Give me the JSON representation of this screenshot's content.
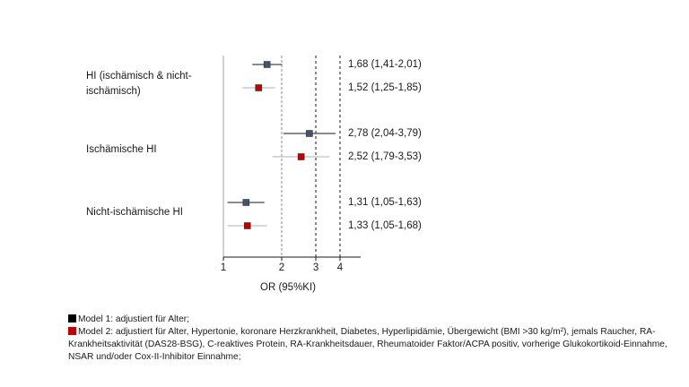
{
  "chart_data": {
    "type": "forest",
    "xlabel": "OR (95%KI)",
    "x_scale": "log",
    "xlim": [
      1,
      5.5
    ],
    "x_ticks": [
      1,
      2,
      3,
      4
    ],
    "x_tick_labels": [
      "1",
      "2",
      "3",
      "4"
    ],
    "reference_lines": [
      2,
      3,
      4
    ],
    "categories": [
      "HI (ischämisch & nicht-ischämisch)",
      "Ischämische HI",
      "Nicht-ischämische HI"
    ],
    "category_labels": [
      "HI (ischämisch & nicht-\nischämisch)",
      "Ischämische HI",
      "Nicht-ischämische HI"
    ],
    "series": [
      {
        "name": "Model 1: adjustiert für Alter;",
        "color": "#44546a",
        "points": [
          {
            "category": "HI (ischämisch & nicht-ischämisch)",
            "or": 1.68,
            "lower": 1.41,
            "upper": 2.01,
            "label": "1,68 (1,41-2,01)"
          },
          {
            "category": "Ischämische HI",
            "or": 2.78,
            "lower": 2.04,
            "upper": 3.79,
            "label": "2,78 (2,04-3,79)"
          },
          {
            "category": "Nicht-ischämische HI",
            "or": 1.31,
            "lower": 1.05,
            "upper": 1.63,
            "label": "1,31 (1,05-1,63)"
          }
        ]
      },
      {
        "name": "Model 2: adjustiert für Alter, Hypertonie, koronare Herzkrankheit, Diabetes, Hyperlipidämie, Übergewicht (BMI >30 kg/m²), jemals Raucher, RA-Krankheitsaktivität (DAS28-BSG), C-reaktives Protein, RA-Krankheitsdauer, Rheumatoider Faktor/ACPA positiv, vorherige Glukokortikoid-Einnahme, NSAR und/oder Cox-II-Inhibitor Einnahme;",
        "color": "#c00000",
        "points": [
          {
            "category": "HI (ischämisch & nicht-ischämisch)",
            "or": 1.52,
            "lower": 1.25,
            "upper": 1.85,
            "label": "1,52 (1,25-1,85)"
          },
          {
            "category": "Ischämische HI",
            "or": 2.52,
            "lower": 1.79,
            "upper": 3.53,
            "label": "2,52 (1,79-3,53)"
          },
          {
            "category": "Nicht-ischämische HI",
            "or": 1.33,
            "lower": 1.05,
            "upper": 1.68,
            "label": "1,33 (1,05-1,68)"
          }
        ]
      }
    ],
    "legend": [
      {
        "swatch_color": "#000000",
        "text": "Model 1: adjustiert für Alter;"
      },
      {
        "swatch_color": "#c00000",
        "text": "Model 2: adjustiert für Alter, Hypertonie, koronare Herzkrankheit, Diabetes, Hyperlipidämie, Übergewicht (BMI >30 kg/m²), jemals Raucher, RA-Krankheitsaktivität (DAS28-BSG), C-reaktives Protein, RA-Krankheitsdauer, Rheumatoider Faktor/ACPA positiv, vorherige Glukokortikoid-Einnahme, NSAR und/oder Cox-II-Inhibitor Einnahme;"
      }
    ],
    "legend_placement": "bottom",
    "grid": false
  }
}
